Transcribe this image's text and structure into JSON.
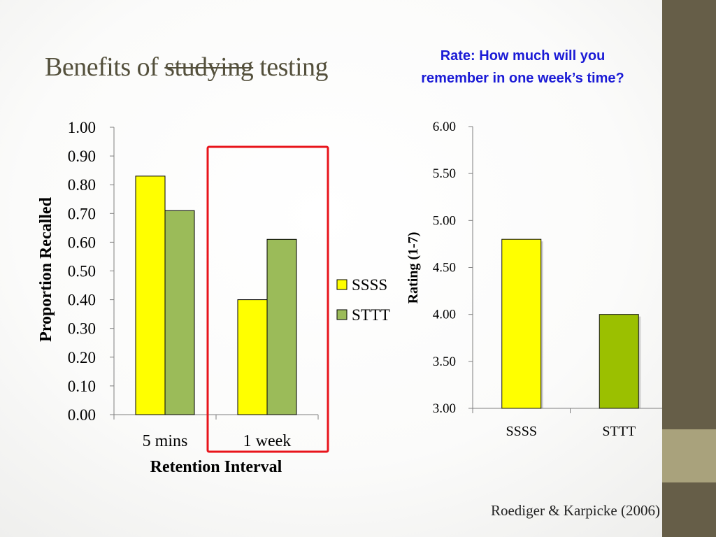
{
  "slide": {
    "title_before": "Benefits of ",
    "title_struck": "studying",
    "title_after": " testing",
    "question": "Rate: How much will you remember in one week’s time?",
    "citation": "Roediger & Karpicke (2006)"
  },
  "colors": {
    "ssss": "#ffff00",
    "sttt_left": "#9bbb59",
    "sttt_right": "#9bc000",
    "highlight_box": "#e8141b",
    "title": "#54503c",
    "question": "#1b1bd6",
    "sidebar": "#665e48",
    "sidebar_accent": "#a9a27c"
  },
  "chart_data": [
    {
      "type": "bar",
      "categories": [
        "5 mins",
        "1 week"
      ],
      "series": [
        {
          "name": "SSSS",
          "values": [
            0.83,
            0.4
          ]
        },
        {
          "name": "STTT",
          "values": [
            0.71,
            0.61
          ]
        }
      ],
      "xlabel": "Retention Interval",
      "ylabel": "Proportion Recalled",
      "ylim": [
        0,
        1
      ],
      "yticks": [
        "0.00",
        "0.10",
        "0.20",
        "0.30",
        "0.40",
        "0.50",
        "0.60",
        "0.70",
        "0.80",
        "0.90",
        "1.00"
      ],
      "legend": "right",
      "highlight_category": "1 week"
    },
    {
      "type": "bar",
      "categories": [
        "SSSS",
        "STTT"
      ],
      "values": [
        4.8,
        4.0
      ],
      "ylabel": "Rating (1-7)",
      "ylim": [
        3,
        6
      ],
      "yticks": [
        "3.00",
        "3.50",
        "4.00",
        "4.50",
        "5.00",
        "5.50",
        "6.00"
      ]
    }
  ]
}
